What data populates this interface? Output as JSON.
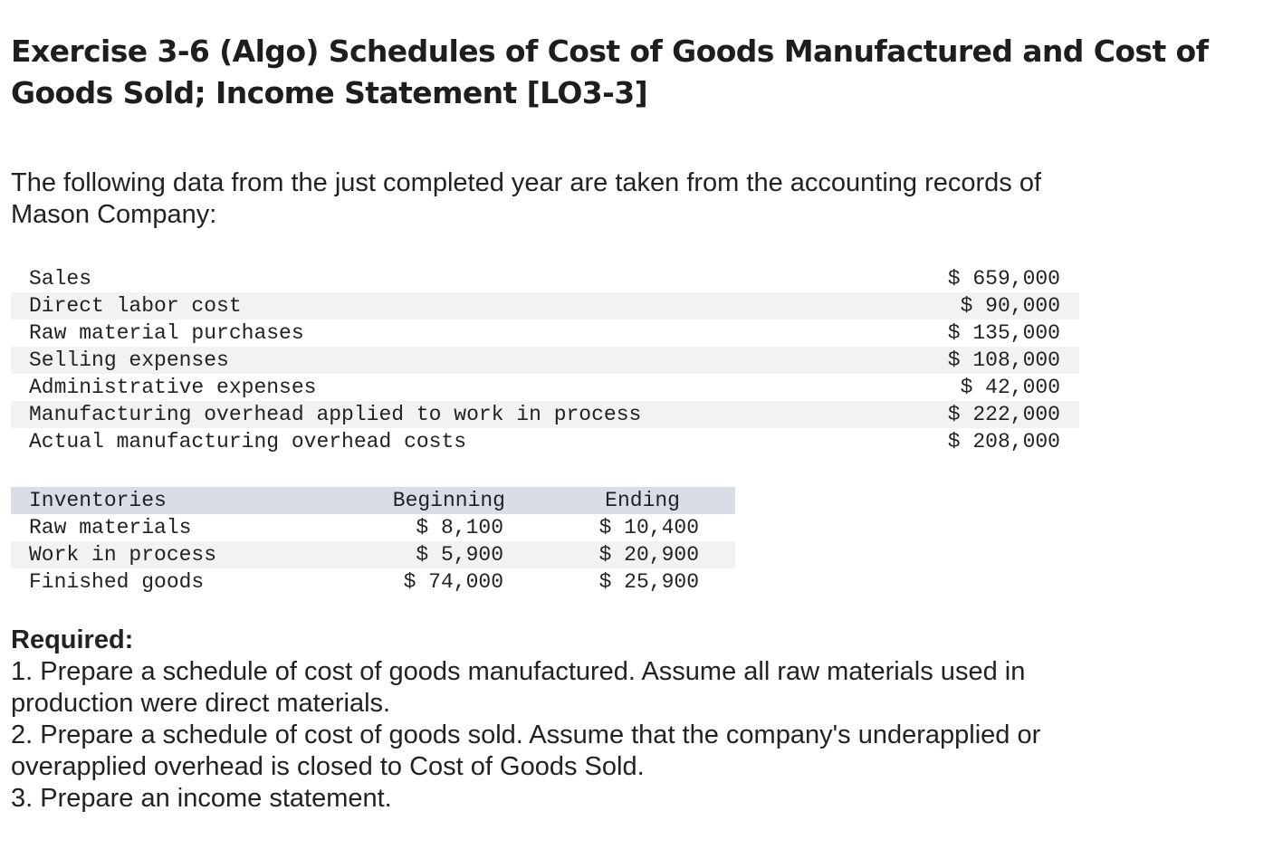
{
  "title": {
    "line1": "Exercise 3-6 (Algo) Schedules of Cost of Goods Manufactured and Cost of",
    "line2": "Goods Sold; Income Statement [LO3-3]"
  },
  "intro": {
    "line1": "The following data from the just completed year are taken from the accounting records of",
    "line2": "Mason Company:"
  },
  "data_table": {
    "rows": [
      {
        "label": "Sales",
        "value": "$ 659,000"
      },
      {
        "label": "Direct labor cost",
        "value": "$ 90,000"
      },
      {
        "label": "Raw material purchases",
        "value": "$ 135,000"
      },
      {
        "label": "Selling expenses",
        "value": "$ 108,000"
      },
      {
        "label": "Administrative expenses",
        "value": "$ 42,000"
      },
      {
        "label": "Manufacturing overhead applied to work in process",
        "value": "$ 222,000"
      },
      {
        "label": "Actual manufacturing overhead costs",
        "value": "$ 208,000"
      }
    ]
  },
  "inventory_table": {
    "headers": {
      "name": "Inventories",
      "beginning": "Beginning",
      "ending": "Ending"
    },
    "rows": [
      {
        "name": "Raw materials",
        "beginning": "$ 8,100",
        "ending": "$ 10,400"
      },
      {
        "name": "Work in process",
        "beginning": "$ 5,900",
        "ending": "$ 20,900"
      },
      {
        "name": "Finished goods",
        "beginning": "$ 74,000",
        "ending": "$ 25,900"
      }
    ]
  },
  "required": {
    "heading": "Required:",
    "lines": [
      "1. Prepare a schedule of cost of goods manufactured. Assume all raw materials used in",
      "production were direct materials.",
      "2. Prepare a schedule of cost of goods sold. Assume that the company's underapplied or",
      "overapplied overhead is closed to Cost of Goods Sold.",
      "3. Prepare an income statement."
    ]
  }
}
